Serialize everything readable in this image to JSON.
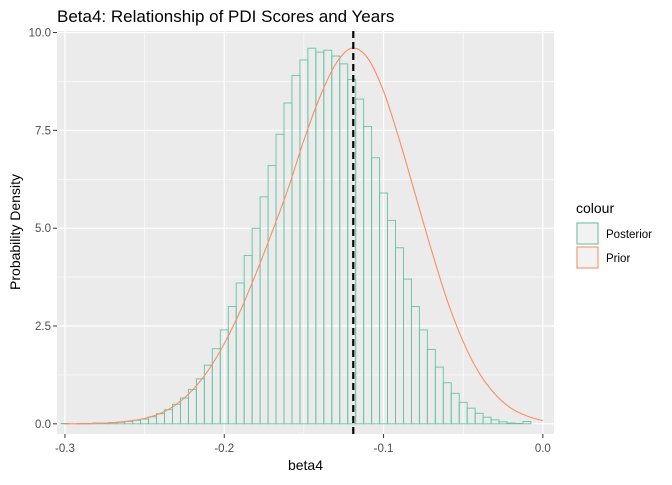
{
  "chart_data": {
    "type": "bar",
    "title": "Beta4: Relationship of PDI Scores and Years",
    "xlabel": "beta4",
    "ylabel": "Probability Density",
    "xlim": [
      -0.305,
      0.007
    ],
    "ylim": [
      -0.26,
      10.04
    ],
    "x_ticks": [
      -0.3,
      -0.2,
      -0.1,
      0.0
    ],
    "x_tick_labels": [
      "-0.3",
      "-0.2",
      "-0.1",
      "0.0"
    ],
    "y_ticks": [
      0,
      2.5,
      5,
      7.5,
      10
    ],
    "y_tick_labels": [
      "0.0",
      "2.5",
      "5.0",
      "7.5",
      "10.0"
    ],
    "grid": true,
    "background": "#EBEBEB",
    "legend": {
      "title": "colour",
      "position": "right",
      "entries": [
        {
          "label": "Posterior",
          "color": "#66C2A5"
        },
        {
          "label": "Prior",
          "color": "#FC8D62"
        }
      ]
    },
    "histogram": {
      "series": "Posterior",
      "color": "#66C2A5",
      "bin_width": 0.005,
      "bin_start": -0.3025,
      "values": [
        0.01,
        0.0,
        0.01,
        0.01,
        0.02,
        0.02,
        0.03,
        0.04,
        0.06,
        0.09,
        0.12,
        0.18,
        0.26,
        0.36,
        0.5,
        0.66,
        0.88,
        1.15,
        1.5,
        1.92,
        2.4,
        3.0,
        3.6,
        4.3,
        5.0,
        5.8,
        6.6,
        7.4,
        8.2,
        8.9,
        9.3,
        9.6,
        9.5,
        9.55,
        9.4,
        9.2,
        8.8,
        8.3,
        7.6,
        6.8,
        5.9,
        5.2,
        4.5,
        3.7,
        3.0,
        2.4,
        1.9,
        1.45,
        1.05,
        0.78,
        0.55,
        0.4,
        0.27,
        0.17,
        0.1,
        0.05,
        0.02,
        0.01,
        0.06
      ]
    },
    "density": {
      "series": "Prior",
      "color": "#FC8D62",
      "x": [
        -0.3,
        -0.29,
        -0.28,
        -0.27,
        -0.26,
        -0.25,
        -0.24,
        -0.23,
        -0.22,
        -0.21,
        -0.2,
        -0.19,
        -0.18,
        -0.17,
        -0.16,
        -0.15,
        -0.14,
        -0.13,
        -0.12,
        -0.11,
        -0.1,
        -0.09,
        -0.08,
        -0.07,
        -0.06,
        -0.05,
        -0.04,
        -0.03,
        -0.02,
        -0.01,
        0.0
      ],
      "y": [
        0.0,
        0.0,
        0.01,
        0.03,
        0.07,
        0.14,
        0.27,
        0.5,
        0.86,
        1.37,
        2.05,
        2.88,
        3.85,
        4.9,
        6.0,
        7.25,
        8.35,
        9.2,
        9.6,
        9.35,
        8.5,
        7.25,
        5.85,
        4.45,
        3.15,
        2.1,
        1.3,
        0.76,
        0.4,
        0.2,
        0.08
      ]
    },
    "reference_line": {
      "x": -0.119,
      "style": "dashed",
      "color": "#000000"
    }
  }
}
